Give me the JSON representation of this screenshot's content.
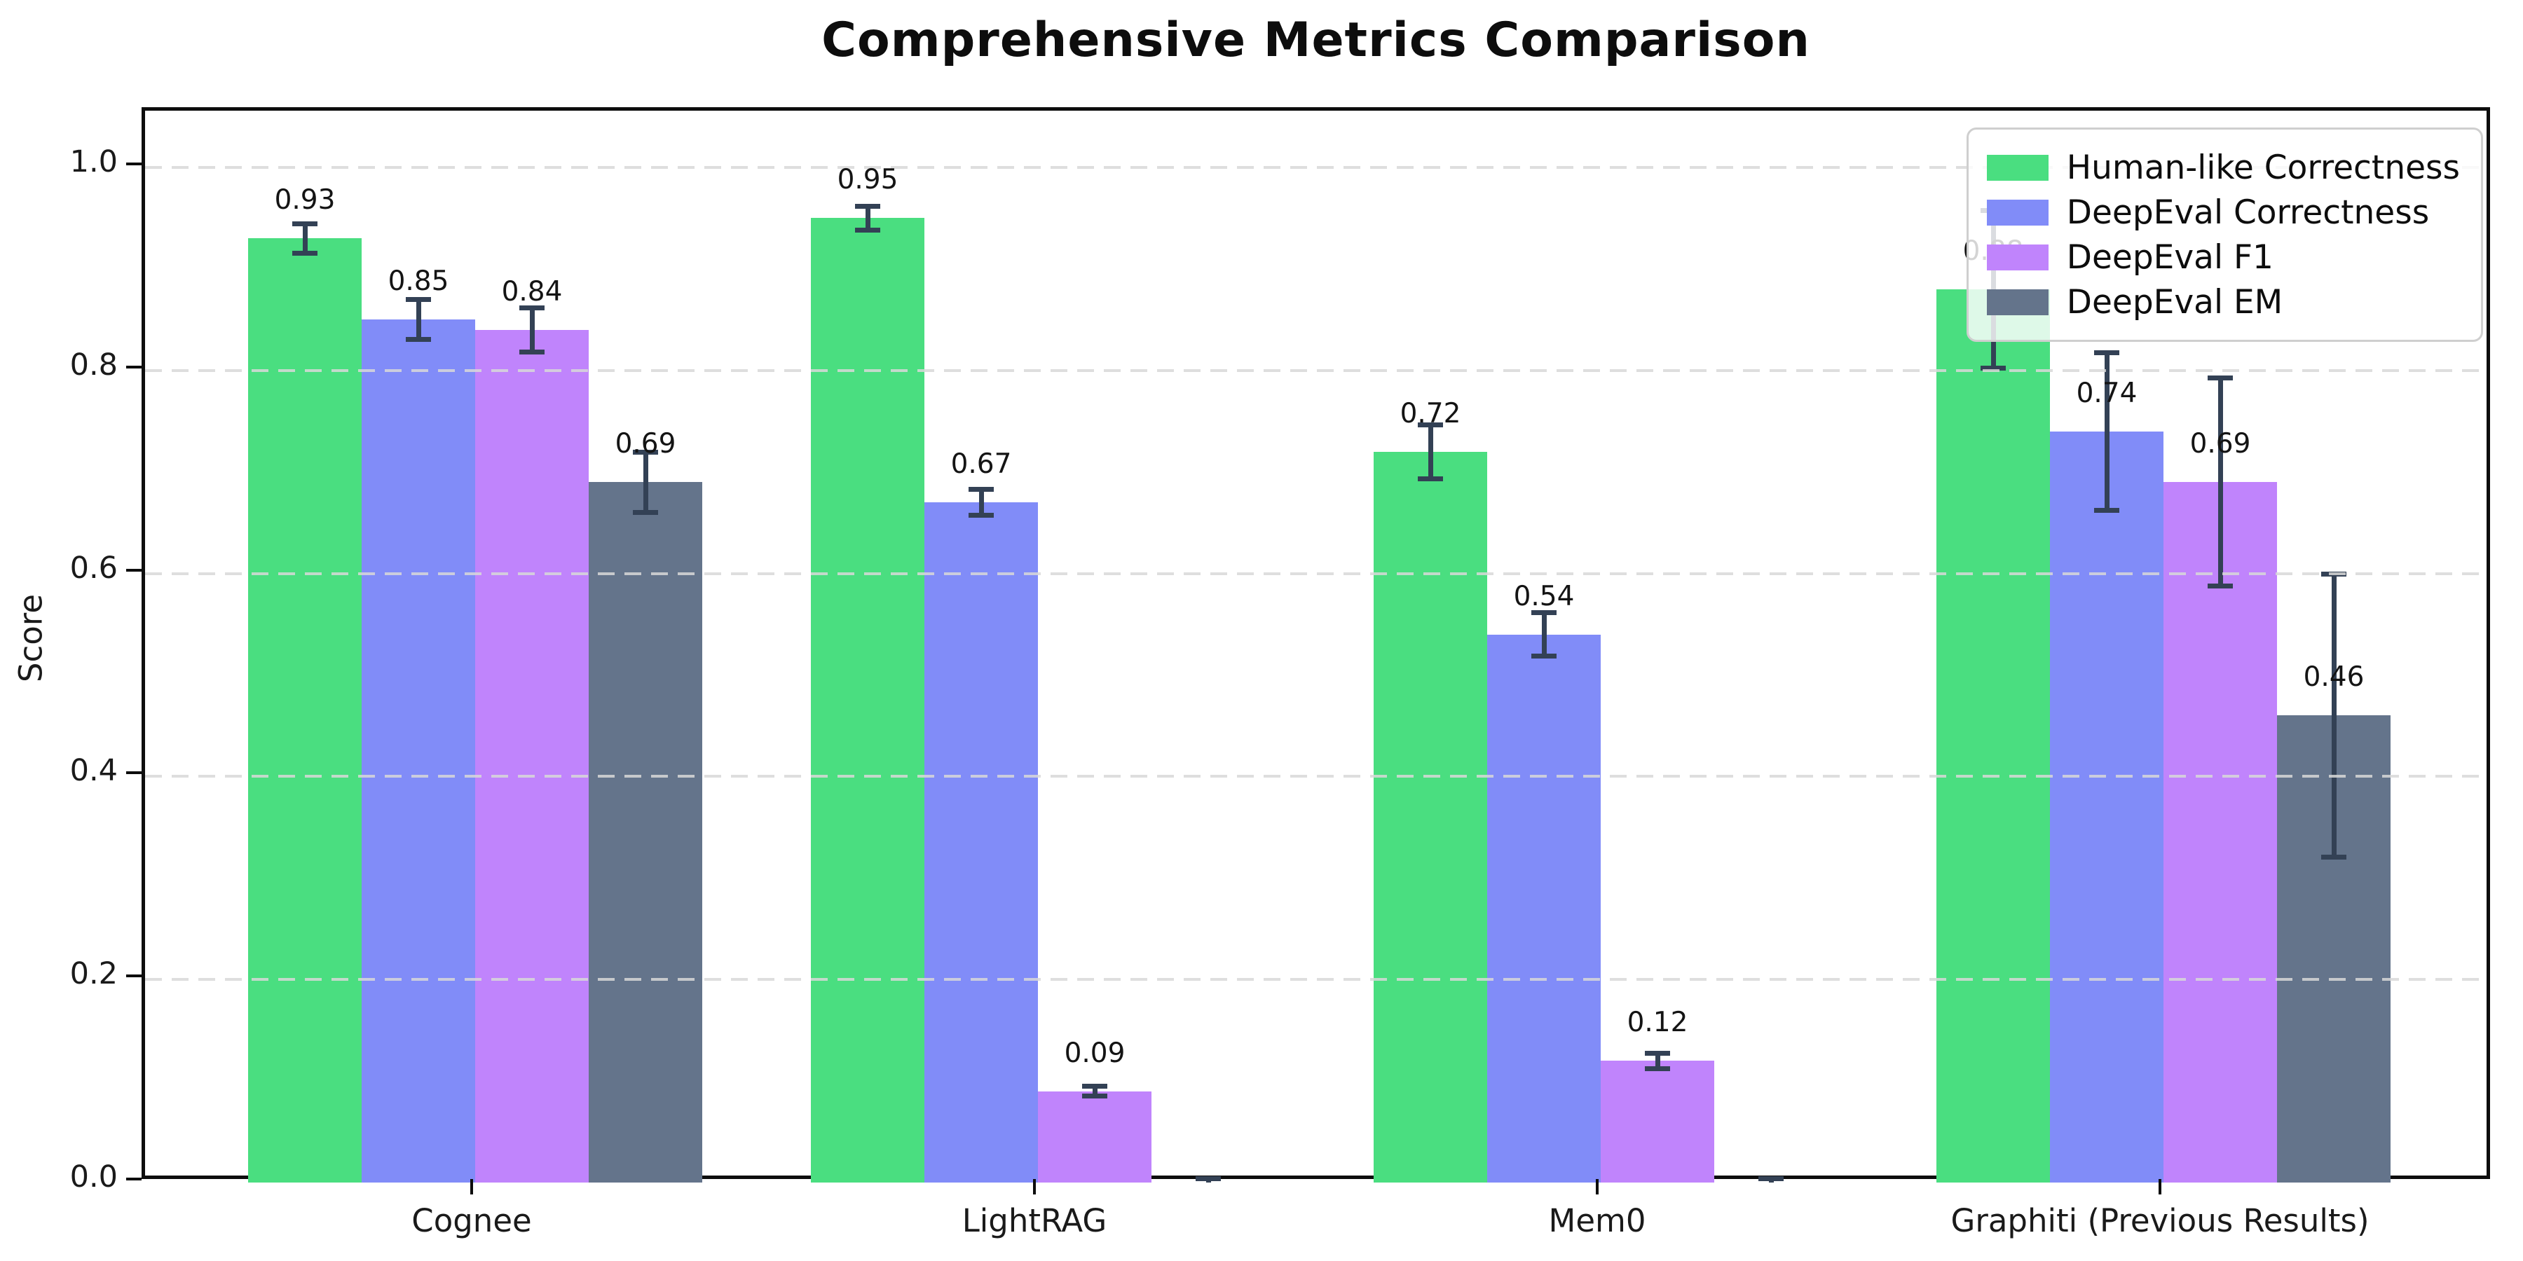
{
  "chart_data": {
    "type": "bar",
    "title": "Comprehensive Metrics Comparison",
    "ylabel": "Score",
    "categories": [
      "Cognee",
      "LightRAG",
      "Mem0",
      "Graphiti (Previous Results)"
    ],
    "series": [
      {
        "name": "Human-like Correctness",
        "color": "#4ade80",
        "values": [
          0.93,
          0.95,
          0.72,
          0.88
        ],
        "errors": [
          0.015,
          0.012,
          0.027,
          0.078
        ]
      },
      {
        "name": "DeepEval Correctness",
        "color": "#818cf8",
        "values": [
          0.85,
          0.67,
          0.54,
          0.74
        ],
        "errors": [
          0.02,
          0.013,
          0.022,
          0.078
        ]
      },
      {
        "name": "DeepEval F1",
        "color": "#c084fc",
        "values": [
          0.84,
          0.09,
          0.12,
          0.69
        ],
        "errors": [
          0.022,
          0.005,
          0.008,
          0.103
        ]
      },
      {
        "name": "DeepEval EM",
        "color": "#64748b",
        "values": [
          0.69,
          0.0,
          0.0,
          0.46
        ],
        "errors": [
          0.03,
          0.004,
          0.004,
          0.14
        ]
      }
    ],
    "bar_value_labels": [
      [
        "0.93",
        "0.95",
        "0.72",
        "0.88"
      ],
      [
        "0.85",
        "0.67",
        "0.54",
        "0.74"
      ],
      [
        "0.84",
        "0.09",
        "0.12",
        "0.69"
      ],
      [
        "0.69",
        "",
        "",
        "0.46"
      ]
    ],
    "y_ticks": [
      "0.0",
      "0.2",
      "0.4",
      "0.6",
      "0.8",
      "1.0"
    ],
    "y_tick_values": [
      0.0,
      0.2,
      0.4,
      0.6,
      0.8,
      1.0
    ],
    "ylim": [
      0,
      1.056
    ],
    "grid": {
      "axis": "y",
      "style": "dashed",
      "color": "#dcdcdc"
    },
    "error_bar_color": "#334155",
    "legend": {
      "position": "upper right",
      "entries": [
        "Human-like Correctness",
        "DeepEval Correctness",
        "DeepEval F1",
        "DeepEval EM"
      ]
    }
  }
}
